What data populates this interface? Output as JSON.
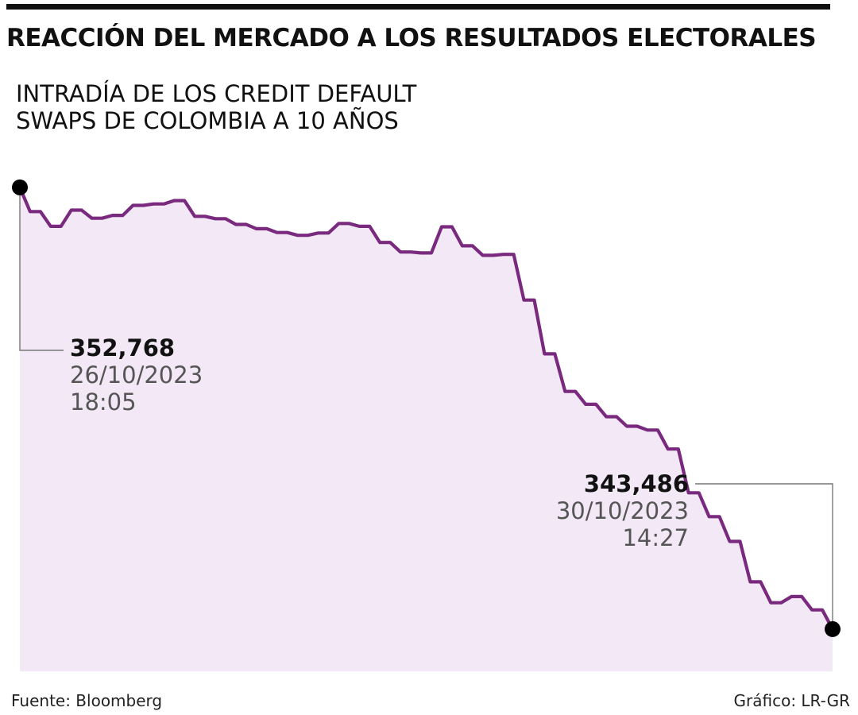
{
  "header": {
    "title": "REACCIÓN DEL MERCADO A LOS RESULTADOS ELECTORALES",
    "subtitle_line1": "INTRADÍA DE LOS CREDIT DEFAULT",
    "subtitle_line2": "SWAPS DE COLOMBIA A 10 AÑOS"
  },
  "chart_data": {
    "type": "area",
    "title": "REACCIÓN DEL MERCADO A LOS RESULTADOS ELECTORALES",
    "subtitle": "INTRADÍA DE LOS CREDIT DEFAULT SWAPS DE COLOMBIA A 10 AÑOS",
    "xlabel": "",
    "ylabel": "",
    "ylim": [
      342.6,
      353.4
    ],
    "grid": false,
    "legend": "none",
    "line_color": "#7a2a7e",
    "fill_color": "#f3e8f6",
    "series": [
      {
        "values": [
          352.768,
          352.26,
          352.26,
          351.95,
          351.95,
          352.29,
          352.29,
          352.12,
          352.12,
          352.18,
          352.18,
          352.39,
          352.39,
          352.42,
          352.42,
          352.49,
          352.49,
          352.16,
          352.16,
          352.11,
          352.11,
          351.99,
          351.99,
          351.9,
          351.9,
          351.82,
          351.82,
          351.76,
          351.76,
          351.81,
          351.81,
          352.01,
          352.01,
          351.95,
          351.95,
          351.61,
          351.61,
          351.41,
          351.41,
          351.39,
          351.39,
          351.94,
          351.94,
          351.54,
          351.54,
          351.34,
          351.34,
          351.36,
          351.36,
          350.4,
          350.4,
          349.27,
          349.27,
          348.48,
          348.48,
          348.21,
          348.21,
          347.95,
          347.95,
          347.75,
          347.75,
          347.67,
          347.67,
          347.27,
          347.27,
          346.35,
          346.35,
          345.85,
          345.85,
          345.33,
          345.33,
          344.48,
          344.48,
          344.04,
          344.04,
          344.17,
          344.17,
          343.89,
          343.89,
          343.486
        ]
      }
    ],
    "annotations": [
      {
        "value": "352,768",
        "date": "26/10/2023",
        "time": "18:05"
      },
      {
        "value": "343,486",
        "date": "30/10/2023",
        "time": "14:27"
      }
    ]
  },
  "footer": {
    "source": "Fuente: Bloomberg",
    "credit": "Gráfico: LR-GR"
  }
}
